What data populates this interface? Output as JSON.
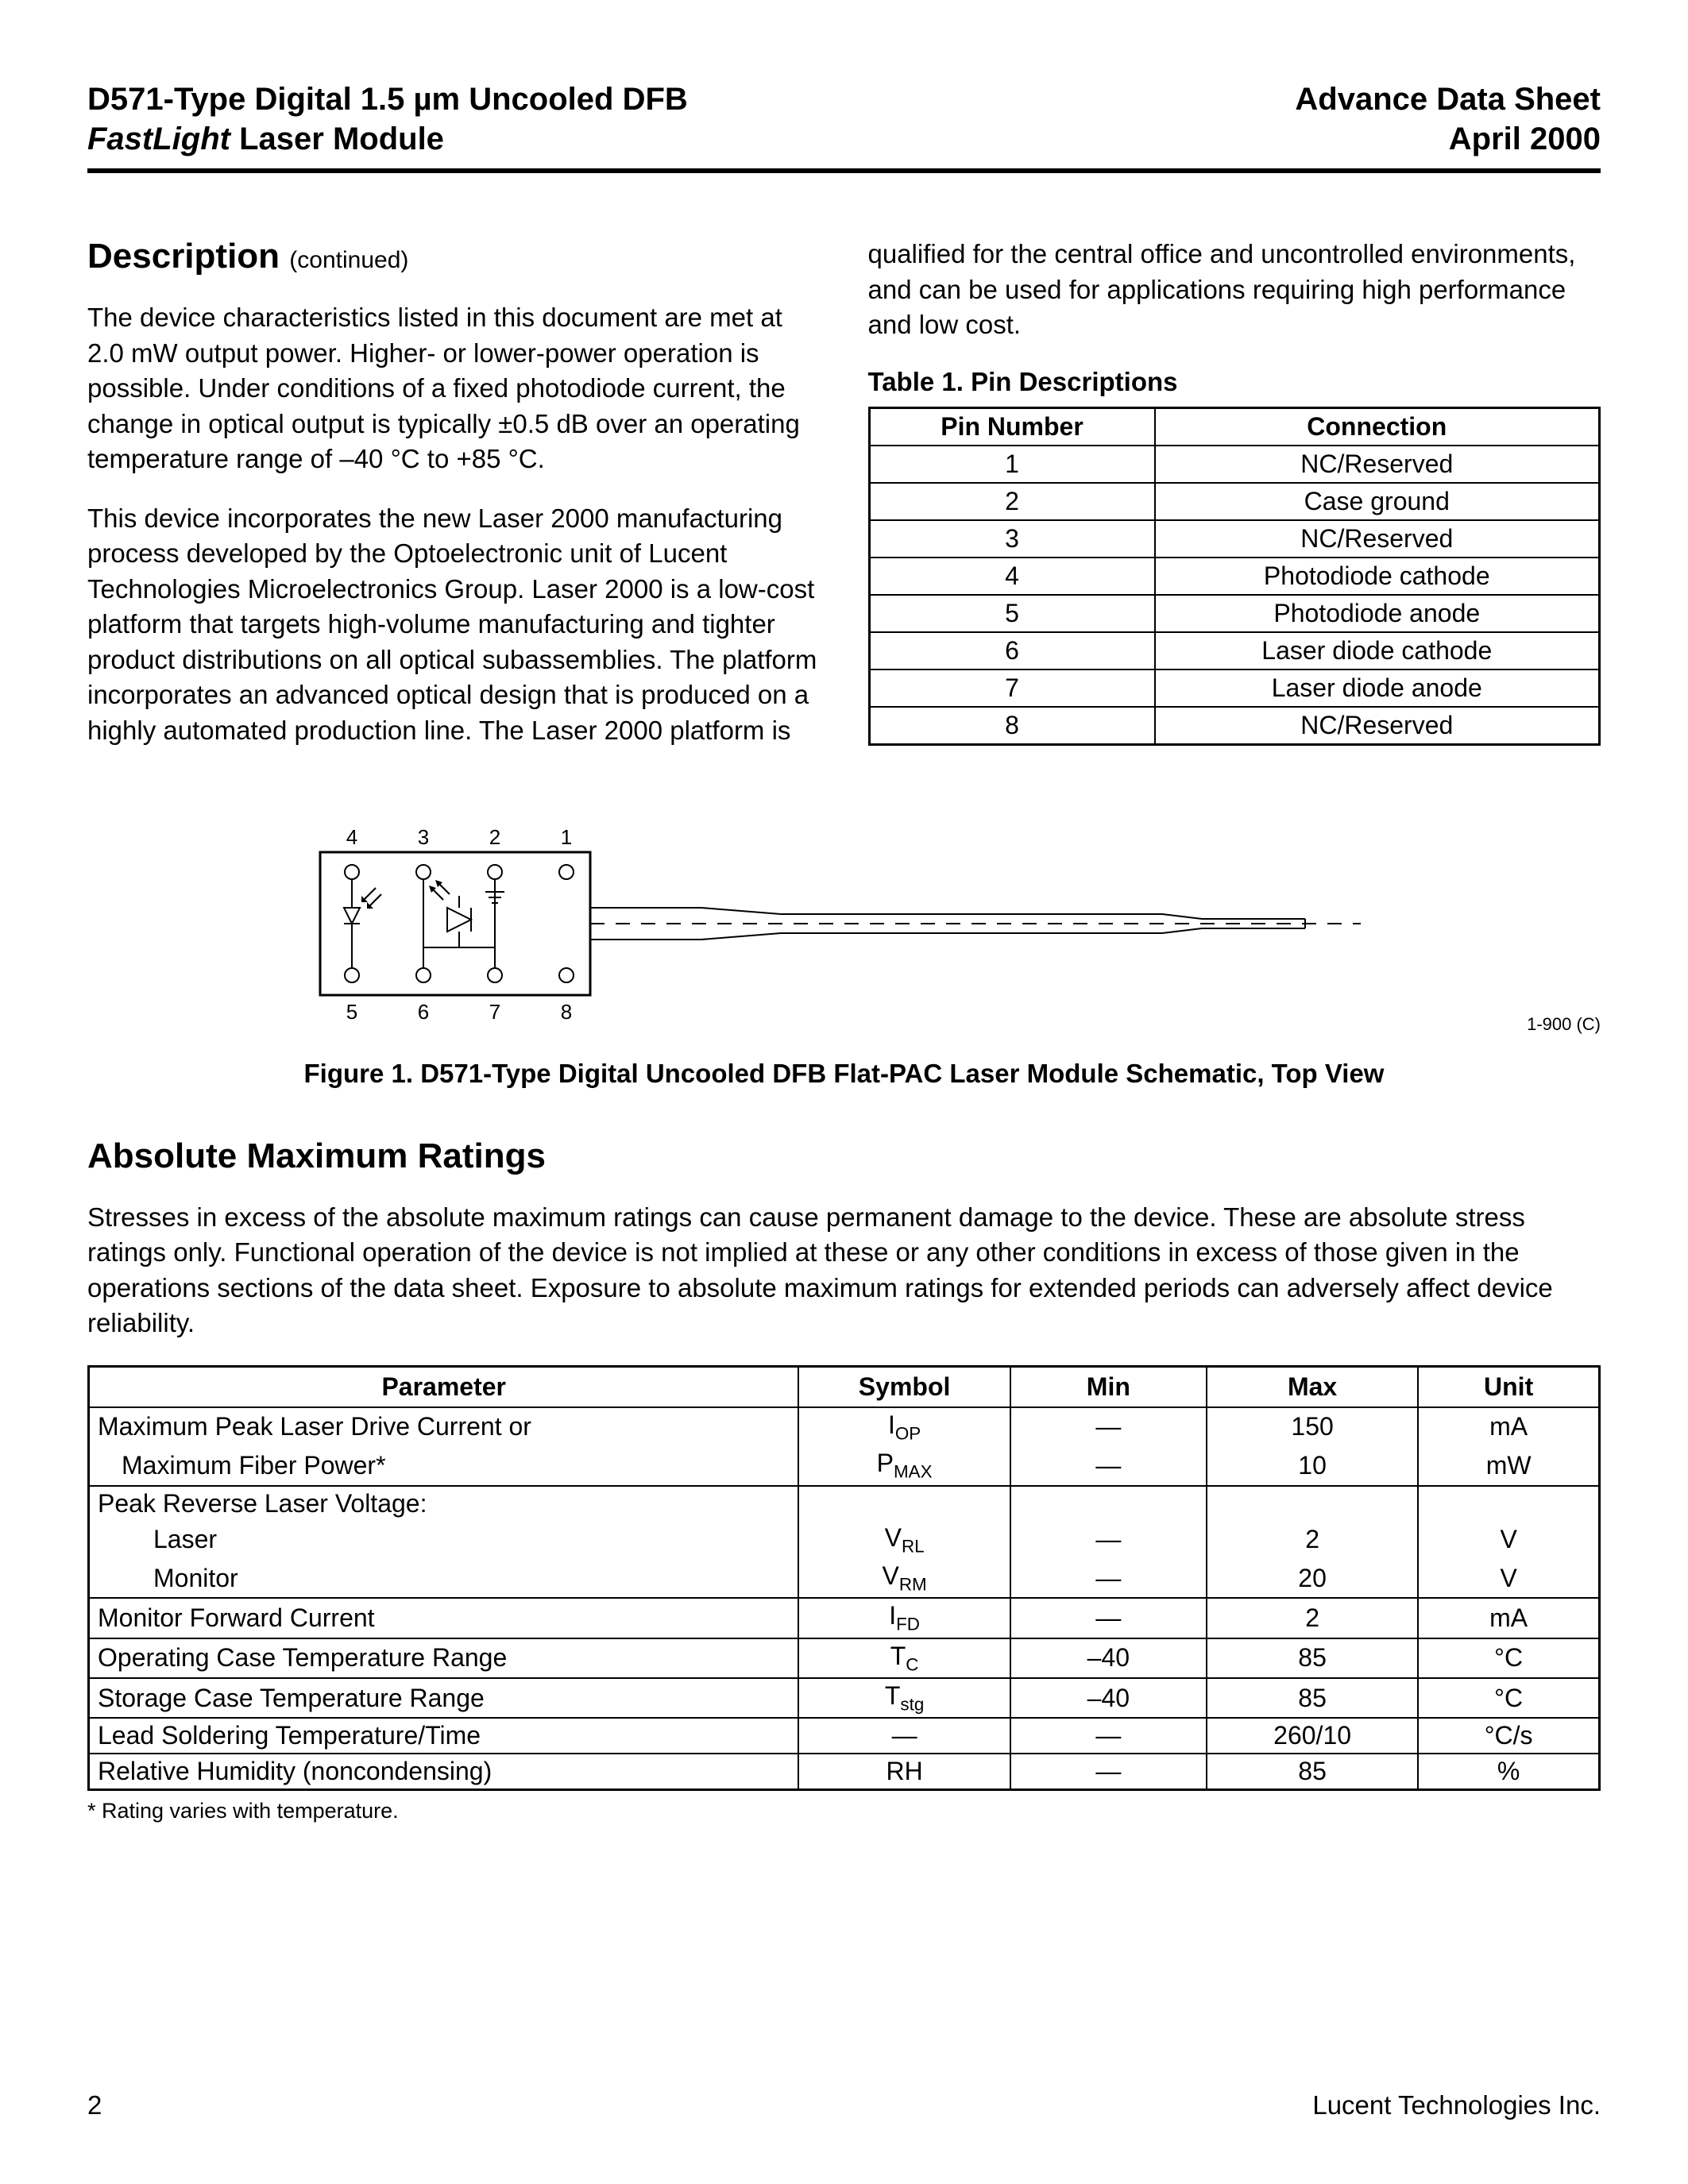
{
  "header": {
    "left_line1": "D571-Type Digital 1.5 µm Uncooled DFB",
    "left_line2_italic": "FastLight",
    "left_line2_rest": " Laser Module",
    "right_line1": "Advance Data Sheet",
    "right_line2": "April 2000"
  },
  "description": {
    "title": "Description",
    "continued": "(continued)",
    "p1": "The device characteristics listed in this document are met at 2.0 mW output power. Higher- or lower-power operation is possible. Under conditions of a fixed photodiode current, the change in optical output is typically ±0.5 dB over an operating temperature range of –40 °C to +85 °C.",
    "p2": "This device incorporates the new Laser 2000 manufacturing process developed by the Optoelectronic unit of Lucent Technologies Microelectronics Group. Laser 2000 is a low-cost platform that targets high-volume manufacturing and tighter product distributions on all optical subassemblies. The platform incorporates an advanced optical design that is produced on a highly automated production line. The Laser 2000 platform is",
    "p3": "qualified for the central office and uncontrolled environments, and can be used for applications requiring high performance and low cost."
  },
  "pin_table": {
    "title": "Table 1. Pin Descriptions",
    "columns": [
      "Pin Number",
      "Connection"
    ],
    "rows": [
      [
        "1",
        "NC/Reserved"
      ],
      [
        "2",
        "Case ground"
      ],
      [
        "3",
        "NC/Reserved"
      ],
      [
        "4",
        "Photodiode cathode"
      ],
      [
        "5",
        "Photodiode anode"
      ],
      [
        "6",
        "Laser diode cathode"
      ],
      [
        "7",
        "Laser diode anode"
      ],
      [
        "8",
        "NC/Reserved"
      ]
    ]
  },
  "figure": {
    "pin_labels_top": [
      "4",
      "3",
      "2",
      "1"
    ],
    "pin_labels_bottom": [
      "5",
      "6",
      "7",
      "8"
    ],
    "ref": "1-900 (C)",
    "caption": "Figure 1. D571-Type Digital Uncooled DFB Flat-PAC Laser Module Schematic, Top View"
  },
  "ratings": {
    "title": "Absolute Maximum Ratings",
    "intro": "Stresses in excess of the absolute maximum ratings can cause permanent damage to the device. These are absolute stress ratings only. Functional operation of the device is not implied at these or any other conditions in excess of those given in the operations sections of the data sheet. Exposure to absolute maximum ratings for extended periods can adversely affect device reliability.",
    "columns": [
      "Parameter",
      "Symbol",
      "Min",
      "Max",
      "Unit"
    ],
    "groups": [
      {
        "rows": [
          {
            "param": "Maximum Peak Laser Drive Current or",
            "indent": 0,
            "sym": "I",
            "sub": "OP",
            "min": "—",
            "max": "150",
            "unit": "mA"
          },
          {
            "param": "Maximum Fiber Power*",
            "indent": 1,
            "sym": "P",
            "sub": "MAX",
            "min": "—",
            "max": "10",
            "unit": "mW"
          }
        ]
      },
      {
        "rows": [
          {
            "param": "Peak Reverse Laser Voltage:",
            "indent": 0,
            "sym": "",
            "sub": "",
            "min": "",
            "max": "",
            "unit": ""
          },
          {
            "param": "Laser",
            "indent": 2,
            "sym": "V",
            "sub": "RL",
            "min": "—",
            "max": "2",
            "unit": "V"
          },
          {
            "param": "Monitor",
            "indent": 2,
            "sym": "V",
            "sub": "RM",
            "min": "—",
            "max": "20",
            "unit": "V"
          }
        ]
      },
      {
        "rows": [
          {
            "param": "Monitor Forward Current",
            "indent": 0,
            "sym": "I",
            "sub": "FD",
            "min": "—",
            "max": "2",
            "unit": "mA"
          }
        ]
      },
      {
        "rows": [
          {
            "param": "Operating Case Temperature Range",
            "indent": 0,
            "sym": "T",
            "sub": "C",
            "min": "–40",
            "max": "85",
            "unit": "°C"
          }
        ]
      },
      {
        "rows": [
          {
            "param": "Storage Case Temperature Range",
            "indent": 0,
            "sym": "T",
            "sub": "stg",
            "min": "–40",
            "max": "85",
            "unit": "°C"
          }
        ]
      },
      {
        "rows": [
          {
            "param": "Lead Soldering Temperature/Time",
            "indent": 0,
            "sym": "—",
            "sub": "",
            "min": "—",
            "max": "260/10",
            "unit": "°C/s"
          }
        ]
      },
      {
        "rows": [
          {
            "param": "Relative Humidity (noncondensing)",
            "indent": 0,
            "sym": "RH",
            "sub": "",
            "min": "—",
            "max": "85",
            "unit": "%"
          }
        ]
      }
    ],
    "footnote": "* Rating varies with temperature."
  },
  "footer": {
    "page": "2",
    "company": "Lucent Technologies Inc."
  },
  "colors": {
    "text": "#000000",
    "background": "#ffffff",
    "border": "#000000"
  }
}
